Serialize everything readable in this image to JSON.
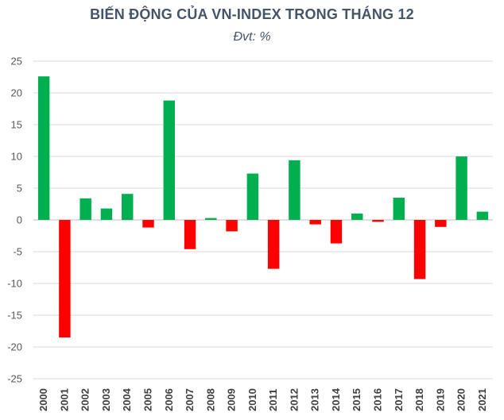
{
  "chart_data": {
    "type": "bar",
    "title": "BIẾN ĐỘNG CỦA VN-INDEX TRONG THÁNG 12",
    "subtitle": "Đvt: %",
    "categories": [
      "2000",
      "2001",
      "2002",
      "2003",
      "2004",
      "2005",
      "2006",
      "2007",
      "2008",
      "2009",
      "2010",
      "2011",
      "2012",
      "2013",
      "2014",
      "2015",
      "2016",
      "2017",
      "2018",
      "2019",
      "2020",
      "2021"
    ],
    "values": [
      22.6,
      -18.5,
      3.4,
      1.8,
      4.1,
      -1.2,
      18.8,
      -4.6,
      0.3,
      -1.8,
      7.3,
      -7.7,
      9.4,
      -0.7,
      -3.7,
      1.0,
      -0.3,
      3.5,
      -9.3,
      -1.1,
      10.0,
      1.3
    ],
    "ylim": [
      -25,
      25
    ],
    "yticks": [
      25,
      20,
      15,
      10,
      5,
      0,
      -5,
      -10,
      -15,
      -20,
      -25
    ],
    "grid": true,
    "colors": {
      "positive": "#00b050",
      "negative": "#ff0000",
      "grid": "#d9d9d9",
      "axis": "#bfbfbf"
    }
  }
}
